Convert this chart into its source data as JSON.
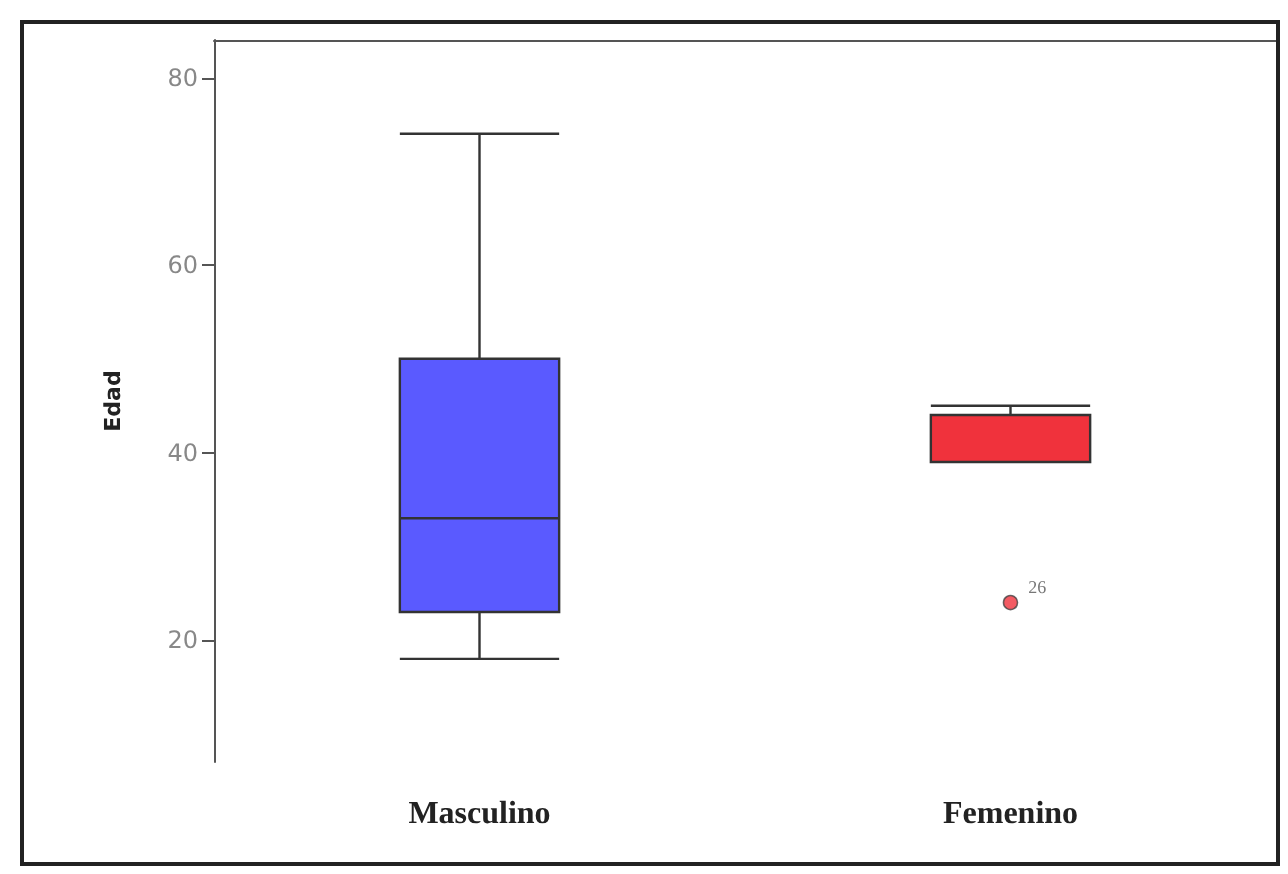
{
  "chart_data": {
    "type": "box",
    "ylabel": "Edad",
    "categories": [
      "Masculino",
      "Femenino"
    ],
    "boxes": [
      {
        "low": 18,
        "q1": 23,
        "median": 33,
        "q3": 50,
        "high": 74
      },
      {
        "low": 39,
        "q1": 39,
        "median": 39,
        "q3": 44,
        "high": 45,
        "outliers": [
          24
        ]
      }
    ],
    "colors": [
      "#5a5aff",
      "#f0323c"
    ],
    "ylim": [
      7,
      84
    ],
    "yticks": [
      20,
      40,
      60,
      80
    ],
    "annotations": [
      "26"
    ]
  }
}
